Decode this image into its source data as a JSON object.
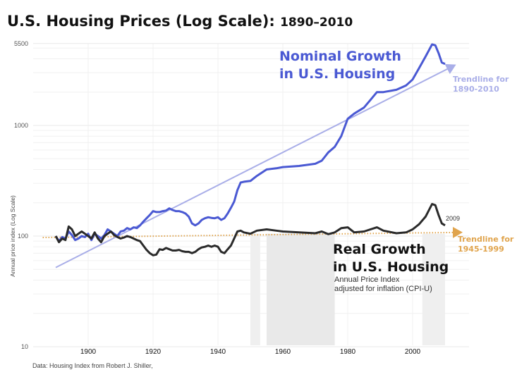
{
  "chart_data": {
    "type": "line",
    "title": "U.S. Housing Prices (Log Scale):",
    "title_range": "1890–2010",
    "ylabel": "Annual price index (Log Scale)",
    "xlabel": "",
    "yscale": "log",
    "ylim": [
      10,
      5500
    ],
    "xlim": [
      1885,
      2018
    ],
    "y_ticks": [
      "5500",
      "1000",
      "100",
      "10"
    ],
    "y_tick_values": [
      5500,
      1000,
      100,
      10
    ],
    "x_ticks": [
      "1900",
      "1920",
      "1940",
      "1960",
      "1980",
      "2000"
    ],
    "x_tick_values": [
      1900,
      1920,
      1940,
      1960,
      1980,
      2000
    ],
    "grid": true,
    "series": [
      {
        "name": "Nominal Growth in U.S. Housing",
        "color": "#4a59d3",
        "x": [
          1890,
          1891,
          1892,
          1893,
          1894,
          1895,
          1896,
          1897,
          1898,
          1899,
          1900,
          1901,
          1902,
          1903,
          1904,
          1905,
          1906,
          1907,
          1908,
          1909,
          1910,
          1911,
          1912,
          1913,
          1914,
          1915,
          1916,
          1917,
          1918,
          1919,
          1920,
          1921,
          1922,
          1923,
          1924,
          1925,
          1926,
          1927,
          1928,
          1929,
          1930,
          1931,
          1932,
          1933,
          1934,
          1935,
          1936,
          1937,
          1938,
          1939,
          1940,
          1941,
          1942,
          1943,
          1944,
          1945,
          1946,
          1947,
          1948,
          1950,
          1952,
          1955,
          1958,
          1960,
          1965,
          1970,
          1972,
          1974,
          1976,
          1978,
          1980,
          1982,
          1985,
          1987,
          1989,
          1991,
          1995,
          1998,
          2000,
          2002,
          2004,
          2006,
          2007,
          2008,
          2009,
          2010
        ],
        "values": [
          100,
          90,
          98,
          95,
          110,
          102,
          92,
          95,
          100,
          98,
          105,
          92,
          105,
          100,
          95,
          102,
          115,
          110,
          105,
          100,
          110,
          112,
          118,
          115,
          120,
          118,
          125,
          135,
          145,
          155,
          168,
          165,
          165,
          168,
          170,
          178,
          172,
          168,
          168,
          165,
          160,
          150,
          130,
          125,
          130,
          140,
          145,
          148,
          146,
          145,
          148,
          140,
          145,
          160,
          180,
          205,
          260,
          305,
          310,
          315,
          350,
          400,
          410,
          420,
          430,
          450,
          480,
          570,
          640,
          800,
          1150,
          1280,
          1450,
          1700,
          2000,
          2000,
          2100,
          2300,
          2600,
          3300,
          4200,
          5400,
          5300,
          4500,
          3700,
          3600
        ]
      },
      {
        "name": "Real Growth in U.S. Housing",
        "color": "#2a2a2a",
        "x": [
          1890,
          1891,
          1892,
          1893,
          1894,
          1895,
          1896,
          1897,
          1898,
          1899,
          1900,
          1901,
          1902,
          1903,
          1904,
          1905,
          1906,
          1907,
          1908,
          1909,
          1910,
          1911,
          1912,
          1913,
          1914,
          1915,
          1916,
          1917,
          1918,
          1919,
          1920,
          1921,
          1922,
          1923,
          1924,
          1925,
          1926,
          1927,
          1928,
          1929,
          1930,
          1931,
          1932,
          1933,
          1934,
          1935,
          1936,
          1937,
          1938,
          1939,
          1940,
          1941,
          1942,
          1943,
          1944,
          1945,
          1946,
          1947,
          1948,
          1950,
          1952,
          1955,
          1958,
          1960,
          1965,
          1970,
          1972,
          1974,
          1976,
          1978,
          1980,
          1982,
          1985,
          1987,
          1989,
          1991,
          1995,
          1998,
          2000,
          2002,
          2004,
          2006,
          2007,
          2008,
          2009,
          2010
        ],
        "values": [
          100,
          88,
          95,
          92,
          122,
          115,
          100,
          105,
          110,
          105,
          100,
          95,
          108,
          95,
          88,
          100,
          105,
          110,
          102,
          98,
          95,
          97,
          100,
          98,
          95,
          92,
          90,
          82,
          75,
          70,
          67,
          68,
          76,
          75,
          78,
          76,
          74,
          74,
          75,
          73,
          72,
          72,
          70,
          72,
          76,
          79,
          80,
          82,
          80,
          82,
          80,
          72,
          70,
          76,
          82,
          95,
          110,
          112,
          108,
          105,
          112,
          115,
          112,
          110,
          108,
          106,
          110,
          104,
          108,
          118,
          120,
          108,
          110,
          115,
          120,
          112,
          106,
          108,
          115,
          128,
          150,
          195,
          190,
          155,
          130,
          125
        ]
      }
    ],
    "trendlines": [
      {
        "name": "Trendline for 1890-2010",
        "x": [
          1890,
          2013
        ],
        "values": [
          52,
          3500
        ],
        "color": "#a9aee8"
      },
      {
        "name": "Trendline for 1945-1999",
        "x": [
          1886,
          2015
        ],
        "values": [
          97,
          108
        ],
        "color": "#e0a44d",
        "style": "dotted"
      }
    ],
    "shaded_periods": [
      [
        1950,
        1953
      ],
      [
        1955,
        1976
      ],
      [
        2003,
        2010
      ]
    ],
    "annotations": {
      "nominal_label": [
        "Nominal Growth",
        "in U.S. Housing"
      ],
      "real_label": [
        "Real Growth",
        "in U.S. Housing"
      ],
      "real_sub": [
        "Annual Price Index",
        "adjusted for inflation (CPI-U)"
      ],
      "trend_nominal": [
        "Trendline for",
        "1890-2010"
      ],
      "trend_real": [
        "Trendline for",
        "1945-1999"
      ],
      "year_marker": "2009"
    },
    "source": "Data: Housing Index from Robert J. Shiller,"
  },
  "colors": {
    "nominal": "#4a59d3",
    "real": "#2a2a2a",
    "trend_nominal": "#a9aee8",
    "trend_real": "#e0a44d"
  }
}
